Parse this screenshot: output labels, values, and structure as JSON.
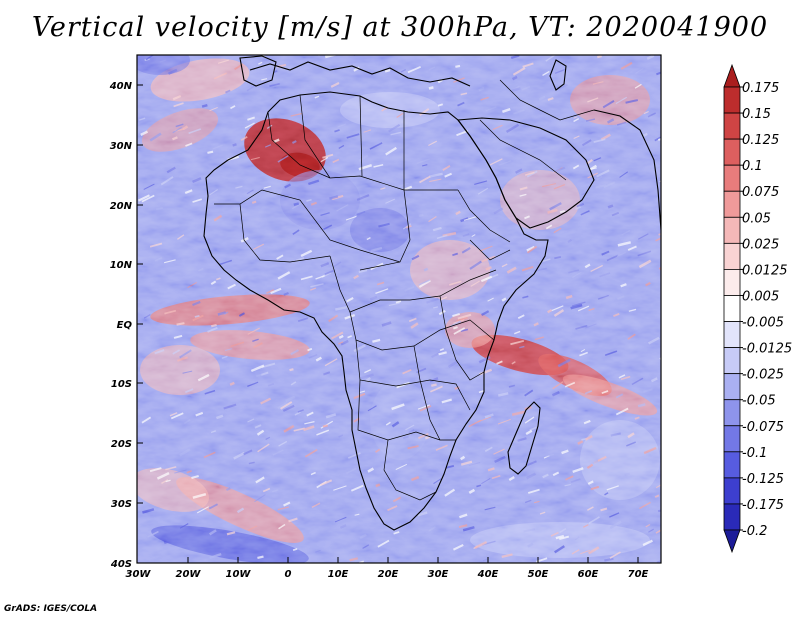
{
  "title": "Vertical velocity [m/s] at 300hPa, VT: 2020041900",
  "credit": "GrADS: IGES/COLA",
  "axes": {
    "lon_labels": [
      "30W",
      "20W",
      "10W",
      "0",
      "10E",
      "20E",
      "30E",
      "40E",
      "50E",
      "60E",
      "70E"
    ],
    "lat_labels": [
      "40N",
      "30N",
      "20N",
      "10N",
      "EQ",
      "10S",
      "20S",
      "30S",
      "40S"
    ]
  },
  "colorbar": {
    "labels": [
      "0.175",
      "0.15",
      "0.125",
      "0.1",
      "0.075",
      "0.05",
      "0.025",
      "0.0125",
      "0.005",
      "-0.005",
      "-0.0125",
      "-0.025",
      "-0.05",
      "-0.075",
      "-0.1",
      "-0.125",
      "-0.175",
      "-0.2"
    ],
    "colors": [
      "#aa1e1e",
      "#bd2d2d",
      "#cf4444",
      "#dd5f5f",
      "#e87c7c",
      "#f09a9a",
      "#f5b8b8",
      "#f9d3d3",
      "#fcecec",
      "#ffffff",
      "#e2e4fb",
      "#c7cbf7",
      "#aab0f2",
      "#8e94ec",
      "#7378e6",
      "#575ce0",
      "#3d3fcf",
      "#2a2ab8",
      "#1c1c98"
    ]
  }
}
